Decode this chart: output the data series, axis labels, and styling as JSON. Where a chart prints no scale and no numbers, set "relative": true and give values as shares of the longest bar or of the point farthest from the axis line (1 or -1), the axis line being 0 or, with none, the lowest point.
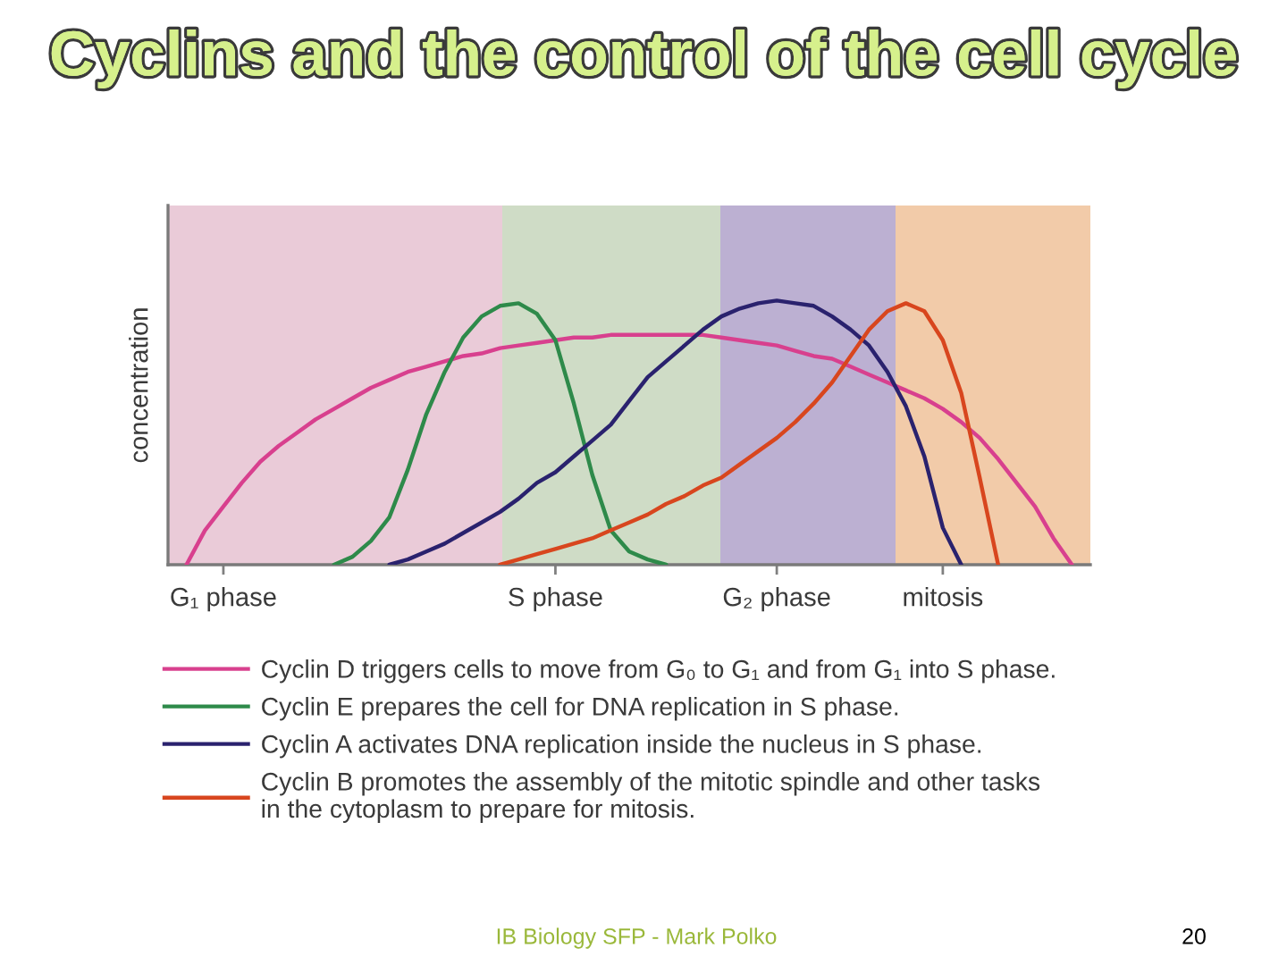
{
  "chart_data": {
    "type": "line",
    "title": "Cyclins and the control of the cell cycle",
    "ylabel": "concentration",
    "relative": true,
    "categories": [
      null,
      null,
      null,
      "G₁ phase",
      null,
      null,
      null,
      null,
      null,
      null,
      null,
      null,
      null,
      null,
      null,
      null,
      null,
      null,
      null,
      null,
      null,
      "S phase",
      null,
      null,
      null,
      null,
      null,
      null,
      null,
      null,
      null,
      null,
      null,
      "G₂ phase",
      null,
      null,
      null,
      null,
      null,
      null,
      null,
      null,
      "mitosis",
      null,
      null,
      null,
      null,
      null,
      null,
      null,
      null
    ],
    "tick_labels": "x",
    "series": [
      {
        "name": "Cyclin D triggers cells to move from G₀ to G₁ and from G₁ into S phase.",
        "color": "#d8408e",
        "values": [
          null,
          0,
          0.13,
          0.22,
          0.31,
          0.39,
          0.45,
          0.5,
          0.55,
          0.59,
          0.63,
          0.67,
          0.7,
          0.73,
          0.75,
          0.77,
          0.79,
          0.8,
          0.82,
          0.83,
          0.84,
          0.85,
          0.86,
          0.86,
          0.87,
          0.87,
          0.87,
          0.87,
          0.87,
          0.87,
          0.86,
          0.85,
          0.84,
          0.83,
          0.81,
          0.79,
          0.78,
          0.75,
          0.72,
          0.69,
          0.66,
          0.63,
          0.59,
          0.54,
          0.48,
          0.4,
          0.31,
          0.22,
          0.1,
          0,
          null
        ]
      },
      {
        "name": "Cyclin E prepares the cell for DNA replication in S phase.",
        "color": "#2e8a4a",
        "values": [
          null,
          null,
          null,
          null,
          null,
          null,
          null,
          null,
          null,
          0,
          0.03,
          0.09,
          0.18,
          0.36,
          0.57,
          0.73,
          0.86,
          0.94,
          0.98,
          0.99,
          0.95,
          0.85,
          0.61,
          0.34,
          0.13,
          0.05,
          0.02,
          0,
          null,
          null,
          null,
          null,
          null,
          null,
          null,
          null,
          null,
          null,
          null,
          null,
          null,
          null,
          null,
          null,
          null,
          null,
          null,
          null,
          null,
          null,
          null
        ]
      },
      {
        "name": "Cyclin A activates DNA replication inside the nucleus in S phase.",
        "color": "#2a226e",
        "values": [
          null,
          null,
          null,
          null,
          null,
          null,
          null,
          null,
          null,
          null,
          null,
          null,
          0,
          0.02,
          0.05,
          0.08,
          0.12,
          0.16,
          0.2,
          0.25,
          0.31,
          0.35,
          0.41,
          0.47,
          0.53,
          0.62,
          0.71,
          0.77,
          0.83,
          0.89,
          0.94,
          0.97,
          0.99,
          1,
          0.99,
          0.98,
          0.94,
          0.89,
          0.83,
          0.73,
          0.6,
          0.41,
          0.14,
          0,
          null,
          null,
          null,
          null,
          null,
          null,
          null
        ]
      },
      {
        "name": "Cyclin B promotes the assembly of the mitotic spindle and other tasks\nin the cytoplasm to prepare for mitosis.",
        "color": "#d8461e",
        "values": [
          null,
          null,
          null,
          null,
          null,
          null,
          null,
          null,
          null,
          null,
          null,
          null,
          null,
          null,
          null,
          null,
          null,
          null,
          0,
          0.02,
          0.04,
          0.06,
          0.08,
          0.1,
          0.13,
          0.16,
          0.19,
          0.23,
          0.26,
          0.3,
          0.33,
          0.38,
          0.43,
          0.48,
          0.54,
          0.61,
          0.69,
          0.79,
          0.89,
          0.96,
          0.99,
          0.96,
          0.85,
          0.65,
          0.33,
          0,
          null,
          null,
          null,
          null,
          null
        ]
      }
    ],
    "legend": "bottom",
    "annotations": [
      "IB Biology SFP - Mark Polko",
      "20"
    ]
  }
}
